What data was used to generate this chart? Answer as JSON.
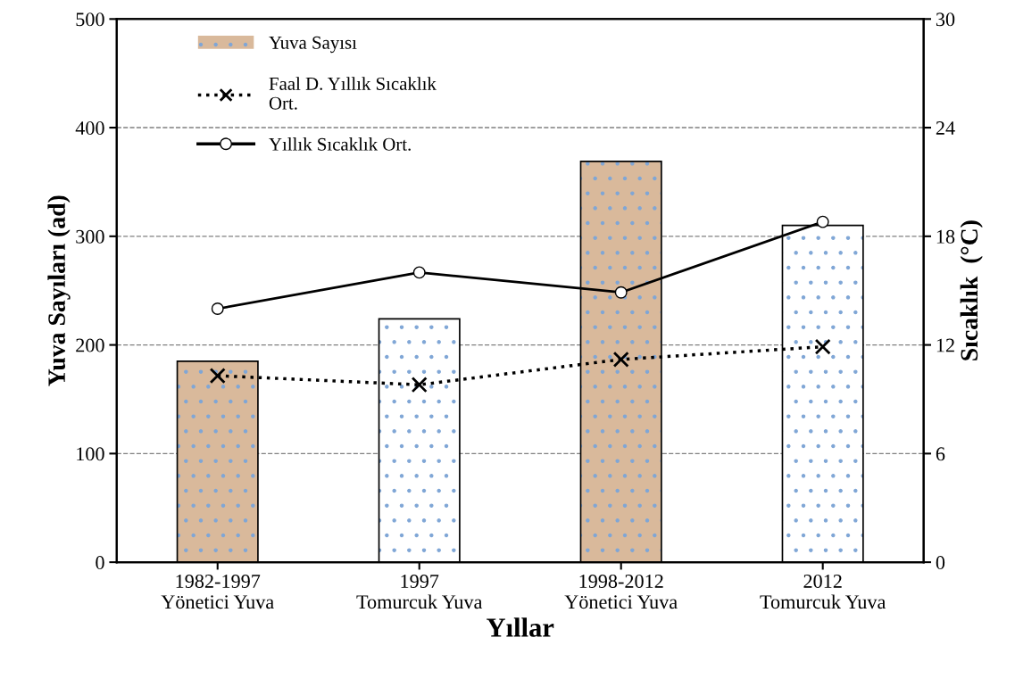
{
  "chart_data": {
    "type": "bar",
    "xlabel": "Yıllar",
    "ylabel": "Yuva Sayıları (ad)",
    "y2label": "Sıcaklık  (°C)",
    "categories": [
      "1982-1997\nYönetici Yuva",
      "1997\nTomurcuk Yuva",
      "1998-2012\nYönetici Yuva",
      "2012\nTomurcuk Yuva"
    ],
    "series": [
      {
        "name": "Yuva Sayısı",
        "colors": [
          "#d9b99b",
          "#ffffff",
          "#d9b99b",
          "#ffffff"
        ],
        "values": [
          185,
          224,
          369,
          310
        ]
      },
      {
        "name": "Faal D. Yıllık Sıcaklık\nOrt.",
        "type": "line",
        "axis": "y2",
        "color": "#000000",
        "marker": "cross",
        "line_style": "dotted",
        "values": [
          10.3,
          9.8,
          11.2,
          11.9
        ]
      },
      {
        "name": "Yıllık Sıcaklık Ort.",
        "type": "line",
        "axis": "y2",
        "color": "#000000",
        "marker": "circle",
        "line_style": "solid",
        "values": [
          14.0,
          16.0,
          14.9,
          18.8
        ]
      }
    ],
    "ylim": [
      0,
      500
    ],
    "yticks": [
      0,
      100,
      200,
      300,
      400,
      500
    ],
    "y2lim": [
      0,
      30
    ],
    "y2ticks": [
      0,
      6,
      12,
      18,
      24,
      30
    ],
    "grid": "y",
    "legend": "top left"
  }
}
